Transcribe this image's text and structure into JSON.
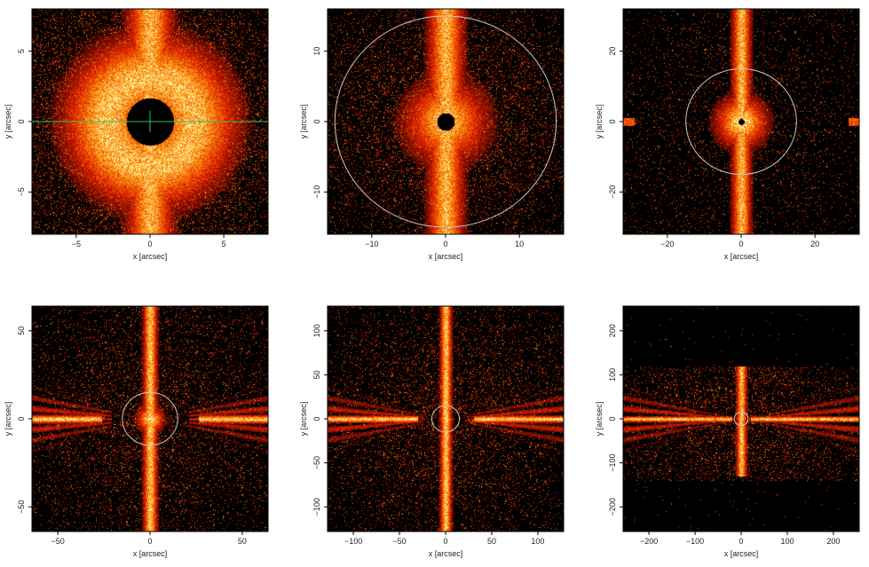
{
  "panels": [
    {
      "id": "p1",
      "xlabel": "x [arcsec]",
      "ylabel": "y [arcsec]",
      "xlim": [
        -8,
        8
      ],
      "ylim": [
        -8,
        8
      ],
      "xticks": [
        -5,
        0,
        5
      ],
      "yticks": [
        -5,
        0,
        5
      ],
      "xtick_labels": [
        "−5",
        "0",
        "5"
      ],
      "ytick_labels": [
        "−5",
        "0",
        "5"
      ],
      "circle_radius": null,
      "crosshair": true,
      "style": "close"
    },
    {
      "id": "p2",
      "xlabel": "x [arcsec]",
      "ylabel": "y [arcsec]",
      "xlim": [
        -16,
        16
      ],
      "ylim": [
        -16,
        16
      ],
      "xticks": [
        -10,
        0,
        10
      ],
      "yticks": [
        -10,
        0,
        10
      ],
      "xtick_labels": [
        "−10",
        "0",
        "10"
      ],
      "ytick_labels": [
        "−10",
        "0",
        "10"
      ],
      "circle_radius": 15,
      "crosshair": false,
      "style": "medium"
    },
    {
      "id": "p3",
      "xlabel": "x [arcsec]",
      "ylabel": "y [arcsec]",
      "xlim": [
        -32,
        32
      ],
      "ylim": [
        -32,
        32
      ],
      "xticks": [
        -20,
        0,
        20
      ],
      "yticks": [
        -20,
        0,
        20
      ],
      "xtick_labels": [
        "−20",
        "0",
        "20"
      ],
      "ytick_labels": [
        "−20",
        "0",
        "20"
      ],
      "circle_radius": 15,
      "crosshair": false,
      "style": "wide"
    },
    {
      "id": "p4",
      "xlabel": "x [arcsec]",
      "ylabel": "y [arcsec]",
      "xlim": [
        -64,
        64
      ],
      "ylim": [
        -64,
        64
      ],
      "xticks": [
        -50,
        0,
        50
      ],
      "yticks": [
        -50,
        0,
        50
      ],
      "xtick_labels": [
        "−50",
        "0",
        "50"
      ],
      "ytick_labels": [
        "−50",
        "0",
        "50"
      ],
      "circle_radius": 15,
      "crosshair": false,
      "style": "spikes"
    },
    {
      "id": "p5",
      "xlabel": "x [arcsec]",
      "ylabel": "y [arcsec]",
      "xlim": [
        -128,
        128
      ],
      "ylim": [
        -128,
        128
      ],
      "xticks": [
        -100,
        -50,
        0,
        50,
        100
      ],
      "yticks": [
        -100,
        -50,
        0,
        50,
        100
      ],
      "xtick_labels": [
        "−100",
        "−50",
        "0",
        "50",
        "100"
      ],
      "ytick_labels": [
        "−100",
        "−50",
        "0",
        "50",
        "100"
      ],
      "circle_radius": 15,
      "crosshair": false,
      "style": "fan"
    },
    {
      "id": "p6",
      "xlabel": "x [arcsec]",
      "ylabel": "y [arcsec]",
      "xlim": [
        -256,
        256
      ],
      "ylim": [
        -256,
        256
      ],
      "xticks": [
        -200,
        -100,
        0,
        100,
        200
      ],
      "yticks": [
        -200,
        -100,
        0,
        100,
        200
      ],
      "xtick_labels": [
        "−200",
        "−100",
        "0",
        "100",
        "200"
      ],
      "ytick_labels": [
        "−200",
        "−100",
        "0",
        "100",
        "200"
      ],
      "circle_radius": 15,
      "crosshair": false,
      "style": "band",
      "band_ylim": [
        -140,
        120
      ]
    }
  ],
  "colors": {
    "background": "#000000",
    "hot_low": "#5a0c00",
    "hot_mid": "#e07010",
    "hot_high": "#fff0a0",
    "circle": "#c8c8c8",
    "crosshair": "#2ec060"
  }
}
